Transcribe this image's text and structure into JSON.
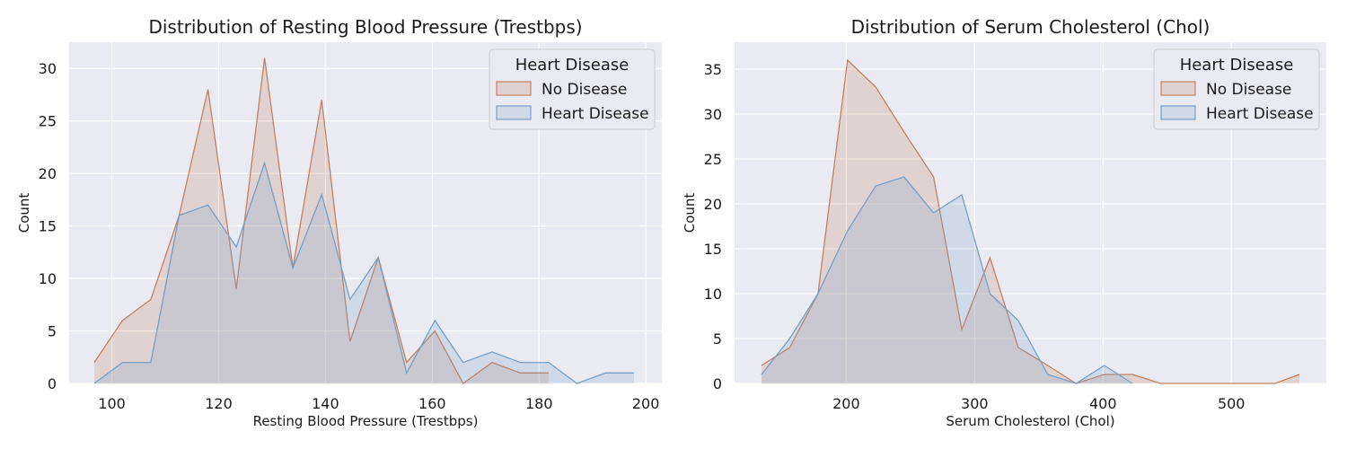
{
  "colors": {
    "panel_background": "#EAEAF2",
    "grid": "#FFFFFF",
    "no_disease": "#C4805F",
    "heart_disease": "#759FC6"
  },
  "chart_data": [
    {
      "type": "area",
      "title": "Distribution of Resting Blood Pressure (Trestbps)",
      "xlabel": "Resting Blood Pressure (Trestbps)",
      "ylabel": "Count",
      "xlim": [
        92,
        203
      ],
      "ylim": [
        0,
        32.5
      ],
      "xticks": [
        100,
        120,
        140,
        160,
        180,
        200
      ],
      "yticks": [
        0,
        5,
        10,
        15,
        20,
        25,
        30
      ],
      "grid": true,
      "legend": {
        "title": "Heart Disease",
        "placement": "top-right"
      },
      "series": [
        {
          "name": "No Disease",
          "color": "#C4805F",
          "x": [
            96.7,
            102.0,
            107.3,
            112.6,
            118.0,
            123.3,
            128.6,
            133.9,
            139.3,
            144.6,
            149.9,
            155.2,
            160.5,
            165.8,
            171.2,
            176.5,
            181.8
          ],
          "y": [
            2,
            6,
            8,
            16,
            28,
            9,
            31,
            11,
            27,
            4,
            12,
            2,
            5,
            0,
            2,
            1,
            1
          ]
        },
        {
          "name": "Heart Disease",
          "color": "#759FC6",
          "x": [
            96.7,
            102.0,
            107.3,
            112.6,
            118.0,
            123.3,
            128.6,
            133.9,
            139.3,
            144.6,
            149.9,
            155.2,
            160.5,
            165.8,
            171.2,
            176.5,
            181.8,
            187.1,
            192.5,
            197.8
          ],
          "y": [
            0,
            2,
            2,
            16,
            17,
            13,
            21,
            11,
            18,
            8,
            12,
            1,
            6,
            2,
            3,
            2,
            2,
            0,
            1,
            1
          ]
        }
      ]
    },
    {
      "type": "area",
      "title": "Distribution of Serum Cholesterol (Chol)",
      "xlabel": "Serum Cholesterol (Chol)",
      "ylabel": "Count",
      "xlim": [
        113,
        574
      ],
      "ylim": [
        0,
        38
      ],
      "xticks": [
        200,
        300,
        400,
        500
      ],
      "yticks": [
        0,
        5,
        10,
        15,
        20,
        25,
        30,
        35
      ],
      "grid": true,
      "legend": {
        "title": "Heart Disease",
        "placement": "top-right"
      },
      "series": [
        {
          "name": "No Disease",
          "color": "#C4805F",
          "x": [
            134.0,
            156.0,
            178.0,
            201.0,
            223.0,
            245.0,
            268.0,
            290.0,
            312.0,
            334.0,
            357.0,
            379.0,
            401.0,
            423.0,
            445.0,
            468.0,
            490.0,
            512.0,
            534.0,
            553.0
          ],
          "y": [
            2,
            4,
            10,
            36,
            33,
            28,
            23,
            6,
            14,
            4,
            2,
            0,
            1,
            1,
            0,
            0,
            0,
            0,
            0,
            1
          ]
        },
        {
          "name": "Heart Disease",
          "color": "#759FC6",
          "x": [
            134.0,
            156.0,
            178.0,
            201.0,
            223.0,
            245.0,
            268.0,
            290.0,
            312.0,
            334.0,
            357.0,
            379.0,
            401.0,
            423.0
          ],
          "y": [
            1,
            5,
            10,
            17,
            22,
            23,
            19,
            21,
            10,
            7,
            1,
            0,
            2,
            0
          ]
        }
      ]
    }
  ]
}
